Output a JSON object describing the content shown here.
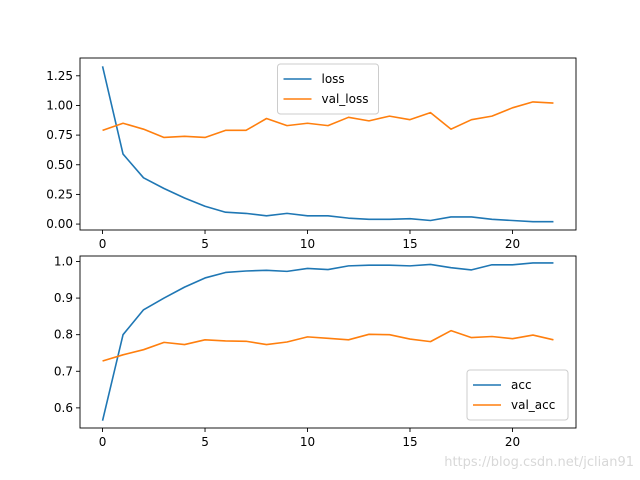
{
  "chart_data": [
    {
      "type": "line",
      "x": [
        0,
        1,
        2,
        3,
        4,
        5,
        6,
        7,
        8,
        9,
        10,
        11,
        12,
        13,
        14,
        15,
        16,
        17,
        18,
        19,
        20,
        21,
        22
      ],
      "xlim": [
        -1.1,
        23.1
      ],
      "ylim": [
        -0.05,
        1.4
      ],
      "xticks": [
        0,
        5,
        10,
        15,
        20
      ],
      "yticks": [
        0.0,
        0.25,
        0.5,
        0.75,
        1.0,
        1.25
      ],
      "ytick_labels": [
        "0.00",
        "0.25",
        "0.50",
        "0.75",
        "1.00",
        "1.25"
      ],
      "legend_loc": "upper center",
      "grid": false,
      "series": [
        {
          "name": "loss",
          "color": "#1f77b4",
          "values": [
            1.33,
            0.59,
            0.39,
            0.3,
            0.22,
            0.15,
            0.1,
            0.09,
            0.07,
            0.09,
            0.07,
            0.07,
            0.05,
            0.04,
            0.04,
            0.045,
            0.03,
            0.06,
            0.06,
            0.04,
            0.03,
            0.02,
            0.02
          ]
        },
        {
          "name": "val_loss",
          "color": "#ff7f0e",
          "values": [
            0.79,
            0.85,
            0.8,
            0.73,
            0.74,
            0.73,
            0.79,
            0.79,
            0.89,
            0.83,
            0.85,
            0.83,
            0.9,
            0.87,
            0.91,
            0.88,
            0.94,
            0.8,
            0.88,
            0.91,
            0.98,
            1.03,
            1.02
          ]
        }
      ]
    },
    {
      "type": "line",
      "x": [
        0,
        1,
        2,
        3,
        4,
        5,
        6,
        7,
        8,
        9,
        10,
        11,
        12,
        13,
        14,
        15,
        16,
        17,
        18,
        19,
        20,
        21,
        22
      ],
      "xlim": [
        -1.1,
        23.1
      ],
      "ylim": [
        0.545,
        1.015
      ],
      "xticks": [
        0,
        5,
        10,
        15,
        20
      ],
      "yticks": [
        0.6,
        0.7,
        0.8,
        0.9,
        1.0
      ],
      "ytick_labels": [
        "0.6",
        "0.7",
        "0.8",
        "0.9",
        "1.0"
      ],
      "legend_loc": "lower right",
      "grid": false,
      "series": [
        {
          "name": "acc",
          "color": "#1f77b4",
          "values": [
            0.565,
            0.8,
            0.868,
            0.9,
            0.93,
            0.955,
            0.97,
            0.974,
            0.976,
            0.973,
            0.981,
            0.978,
            0.988,
            0.99,
            0.99,
            0.988,
            0.992,
            0.983,
            0.977,
            0.991,
            0.991,
            0.996,
            0.996
          ]
        },
        {
          "name": "val_acc",
          "color": "#ff7f0e",
          "values": [
            0.728,
            0.745,
            0.759,
            0.779,
            0.773,
            0.786,
            0.783,
            0.782,
            0.773,
            0.78,
            0.794,
            0.79,
            0.786,
            0.801,
            0.8,
            0.788,
            0.781,
            0.811,
            0.792,
            0.795,
            0.789,
            0.799,
            0.786
          ]
        }
      ]
    }
  ],
  "watermark": "https://blog.csdn.net/jclian91"
}
